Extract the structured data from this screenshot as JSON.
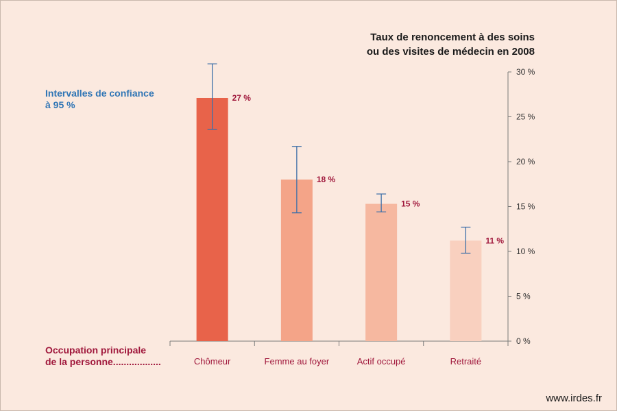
{
  "title": [
    "Taux de renoncement à des soins",
    "ou des visites de médecin en 2008"
  ],
  "ci_label": [
    "Intervalles de confiance",
    "à 95 %"
  ],
  "x_label": [
    "Occupation principale",
    "de la personne.................."
  ],
  "credit": "www.irdes.fr",
  "colors": {
    "background": "#fbe9df",
    "bars": [
      "#e8634a",
      "#f4a488",
      "#f6b8a0",
      "#f9d0bf"
    ],
    "error_bar": "#3d6fa8",
    "value_label": "#a0183c",
    "ci_label": "#2f75b5",
    "axis": "#7a7a7a"
  },
  "chart_data": {
    "type": "bar",
    "categories": [
      "Chômeur",
      "Femme au foyer",
      "Actif occupé",
      "Retraité"
    ],
    "values": [
      27.1,
      18.0,
      15.3,
      11.2
    ],
    "value_labels": [
      "27 %",
      "18 %",
      "15 %",
      "11 %"
    ],
    "ci_low": [
      23.6,
      14.3,
      14.4,
      9.8
    ],
    "ci_high": [
      30.9,
      21.7,
      16.4,
      12.7
    ],
    "ylim": [
      0,
      30
    ],
    "y_ticks": [
      0,
      5,
      10,
      15,
      20,
      25,
      30
    ],
    "y_tick_labels": [
      "0 %",
      "5 %",
      "10 %",
      "15 %",
      "20 %",
      "25 %",
      "30 %"
    ],
    "y_axis_side": "right",
    "grid": false,
    "legend": "none"
  }
}
